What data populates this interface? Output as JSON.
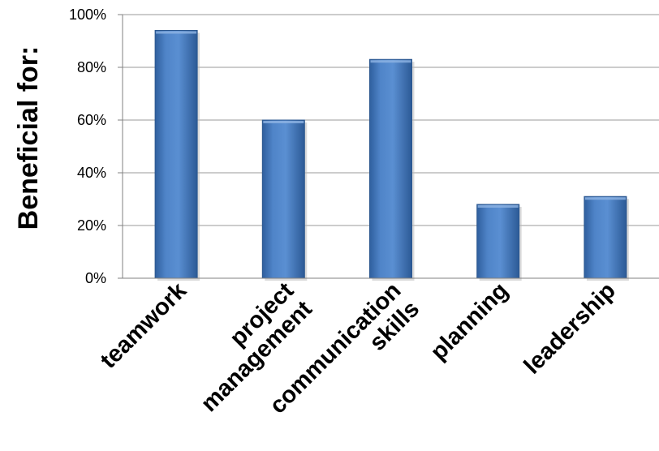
{
  "chart_data": {
    "type": "bar",
    "categories": [
      "teamwork",
      "project management",
      "communication skills",
      "planning",
      "leadership"
    ],
    "category_lines": [
      [
        "teamwork"
      ],
      [
        "project",
        "management"
      ],
      [
        "communication",
        "skills"
      ],
      [
        "planning"
      ],
      [
        "leadership"
      ]
    ],
    "values": [
      94,
      60,
      83,
      28,
      31
    ],
    "ylabel": "Beneficial for:",
    "ylim": [
      0,
      100
    ],
    "yticks": [
      "0%",
      "20%",
      "40%",
      "60%",
      "80%",
      "100%"
    ],
    "grid": true,
    "bar_color": "#4a7ebb"
  }
}
